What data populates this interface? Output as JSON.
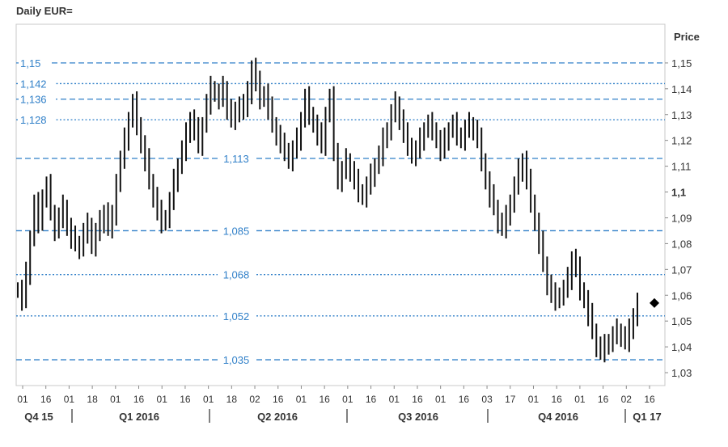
{
  "chart_data": {
    "type": "ohlc",
    "title": "Daily EUR=",
    "ylabel": "Price",
    "ylim": [
      1.025,
      1.165
    ],
    "y_ticks": [
      "1,03",
      "1,04",
      "1,05",
      "1,06",
      "1,07",
      "1,08",
      "1,09",
      "1,1",
      "1,11",
      "1,12",
      "1,13",
      "1,14",
      "1,15"
    ],
    "y_tick_values": [
      1.03,
      1.04,
      1.05,
      1.06,
      1.07,
      1.08,
      1.09,
      1.1,
      1.11,
      1.12,
      1.13,
      1.14,
      1.15
    ],
    "x_tick_labels": [
      "01",
      "16",
      "01",
      "18",
      "01",
      "16",
      "01",
      "16",
      "01",
      "18",
      "02",
      "16",
      "01",
      "16",
      "01",
      "16",
      "01",
      "16",
      "01",
      "16",
      "03",
      "17",
      "01",
      "16",
      "01",
      "16",
      "02",
      "16"
    ],
    "quarter_labels": [
      "Q4 15",
      "Q1 2016",
      "Q2 2016",
      "Q3 2016",
      "Q4 2016",
      "Q1 17"
    ],
    "levels": [
      {
        "value": 1.15,
        "label": "1,15",
        "style": "dashed",
        "label_side": "left"
      },
      {
        "value": 1.142,
        "label": "1,142",
        "style": "dotted",
        "label_side": "left"
      },
      {
        "value": 1.136,
        "label": "1,136",
        "style": "dashed",
        "label_side": "left"
      },
      {
        "value": 1.128,
        "label": "1,128",
        "style": "dotted",
        "label_side": "left"
      },
      {
        "value": 1.113,
        "label": "1,113",
        "style": "dashed",
        "label_side": "center"
      },
      {
        "value": 1.085,
        "label": "1,085",
        "style": "dashed",
        "label_side": "center"
      },
      {
        "value": 1.068,
        "label": "1,068",
        "style": "dotted",
        "label_side": "center"
      },
      {
        "value": 1.052,
        "label": "1,052",
        "style": "dotted",
        "label_side": "center"
      },
      {
        "value": 1.035,
        "label": "1,035",
        "style": "dashed",
        "label_side": "center"
      }
    ],
    "series": [
      {
        "values": [
          1.062,
          1.058,
          1.068,
          1.082,
          1.095,
          1.088,
          1.098,
          1.102,
          1.092,
          1.085,
          1.09,
          1.094,
          1.086,
          1.082,
          1.08,
          1.078,
          1.084,
          1.087,
          1.079,
          1.084,
          1.088,
          1.092,
          1.086,
          1.09,
          1.104,
          1.112,
          1.12,
          1.128,
          1.134,
          1.126,
          1.118,
          1.112,
          1.104,
          1.098,
          1.092,
          1.088,
          1.09,
          1.096,
          1.104,
          1.11,
          1.116,
          1.122,
          1.128,
          1.124,
          1.118,
          1.126,
          1.134,
          1.14,
          1.138,
          1.136,
          1.14,
          1.132,
          1.128,
          1.13,
          1.134,
          1.132,
          1.138,
          1.148,
          1.142,
          1.136,
          1.138,
          1.132,
          1.126,
          1.122,
          1.118,
          1.116,
          1.112,
          1.116,
          1.12,
          1.128,
          1.136,
          1.13,
          1.126,
          1.122,
          1.118,
          1.13,
          1.136,
          1.116,
          1.104,
          1.108,
          1.112,
          1.108,
          1.104,
          1.1,
          1.098,
          1.102,
          1.106,
          1.11,
          1.114,
          1.12,
          1.124,
          1.13,
          1.134,
          1.128,
          1.122,
          1.118,
          1.114,
          1.116,
          1.12,
          1.124,
          1.126,
          1.124,
          1.12,
          1.116,
          1.12,
          1.124,
          1.126,
          1.122,
          1.12,
          1.124,
          1.126,
          1.124,
          1.12,
          1.112,
          1.104,
          1.098,
          1.094,
          1.088,
          1.086,
          1.09,
          1.096,
          1.102,
          1.108,
          1.112,
          1.104,
          1.096,
          1.088,
          1.08,
          1.072,
          1.064,
          1.06,
          1.058,
          1.06,
          1.062,
          1.066,
          1.074,
          1.07,
          1.062,
          1.058,
          1.052,
          1.046,
          1.04,
          1.038,
          1.04,
          1.042,
          1.044,
          1.046,
          1.044,
          1.042,
          1.046,
          1.052,
          1.057
        ]
      }
    ],
    "last_value": 1.057
  }
}
